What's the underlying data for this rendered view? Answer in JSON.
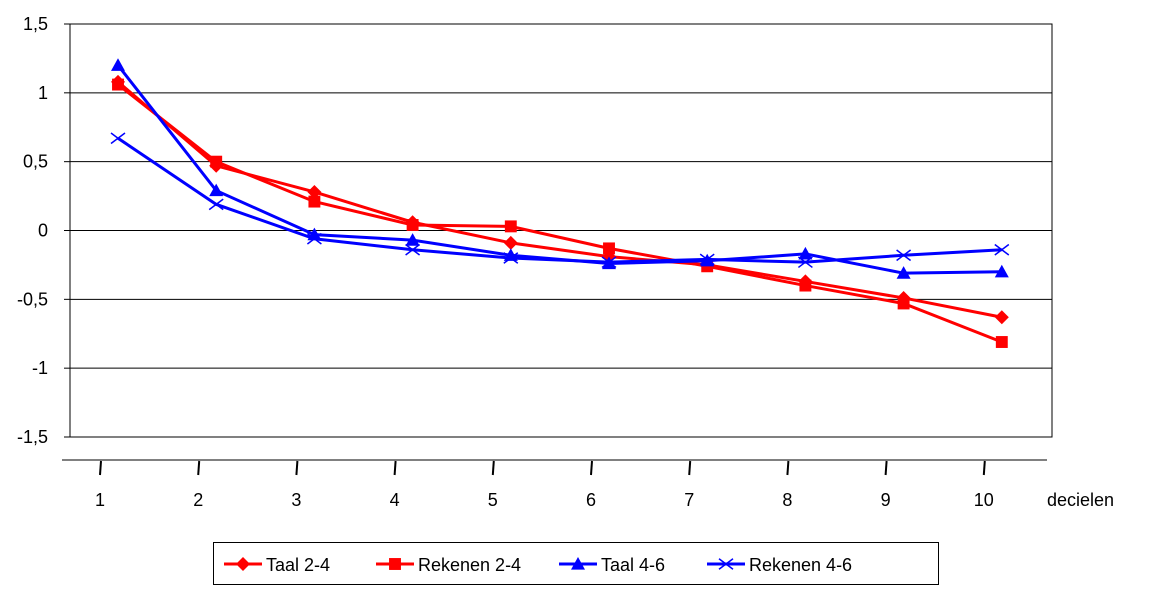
{
  "chart_data": {
    "type": "line",
    "title": "",
    "xlabel": "decielen",
    "ylabel": "",
    "categories": [
      "1",
      "2",
      "3",
      "4",
      "5",
      "6",
      "7",
      "8",
      "9",
      "10"
    ],
    "ylim": [
      -1.5,
      1.5
    ],
    "ytick_labels": [
      "1,5",
      "1",
      "0,5",
      "0",
      "-0,5",
      "-1",
      "-1,5"
    ],
    "ytick_values": [
      1.5,
      1,
      0.5,
      0,
      -0.5,
      -1,
      -1.5
    ],
    "grid": "horizontal",
    "legend_position": "bottom",
    "series": [
      {
        "name": "Taal 2-4",
        "color": "#ff0000",
        "marker": "diamond",
        "values": [
          1.08,
          0.47,
          0.28,
          0.06,
          -0.09,
          -0.19,
          -0.25,
          -0.37,
          -0.49,
          -0.63
        ]
      },
      {
        "name": "Rekenen 2-4",
        "color": "#ff0000",
        "marker": "square",
        "values": [
          1.06,
          0.5,
          0.21,
          0.04,
          0.03,
          -0.13,
          -0.26,
          -0.4,
          -0.53,
          -0.81
        ]
      },
      {
        "name": "Taal 4-6",
        "color": "#0000ff",
        "marker": "triangle",
        "values": [
          1.2,
          0.29,
          -0.03,
          -0.07,
          -0.18,
          -0.24,
          -0.22,
          -0.17,
          -0.31,
          -0.3
        ]
      },
      {
        "name": "Rekenen 4-6",
        "color": "#0000ff",
        "marker": "x",
        "values": [
          0.67,
          0.19,
          -0.06,
          -0.14,
          -0.2,
          -0.23,
          -0.21,
          -0.23,
          -0.18,
          -0.14
        ]
      }
    ]
  }
}
